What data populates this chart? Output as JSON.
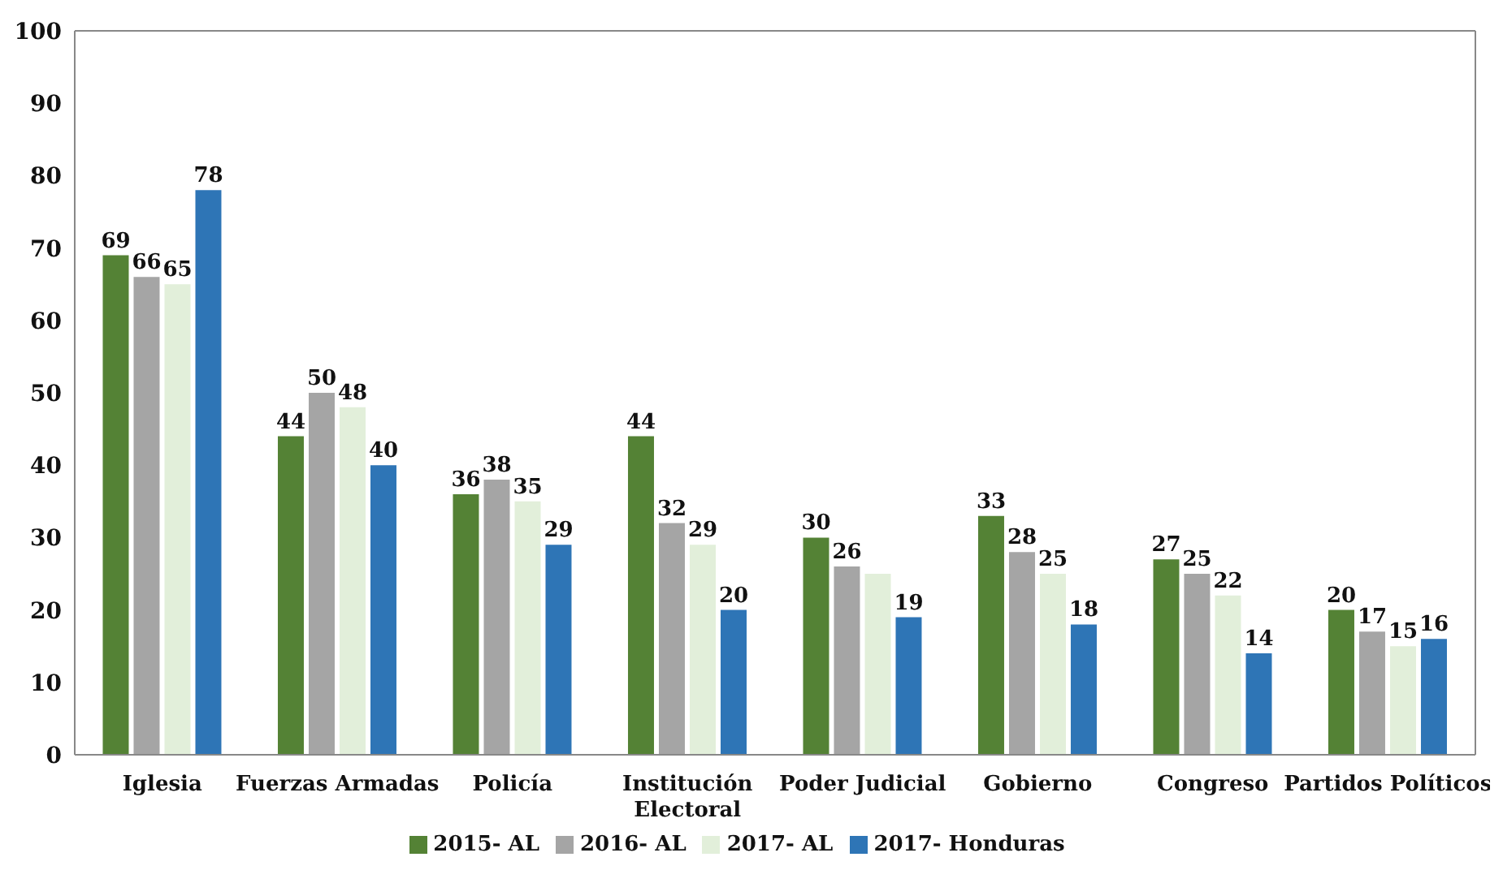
{
  "chart_data": {
    "type": "bar",
    "categories": [
      "Iglesia",
      "Fuerzas Armadas",
      "Policía",
      "Institución Electoral",
      "Poder Judicial",
      "Gobierno",
      "Congreso",
      "Partidos Políticos"
    ],
    "series": [
      {
        "name": "2015- AL",
        "color": "#548235",
        "values": [
          69,
          44,
          36,
          44,
          30,
          33,
          27,
          20
        ],
        "value_labels": [
          "69",
          "44",
          "36",
          "44",
          "30",
          "33",
          "27",
          "20"
        ]
      },
      {
        "name": "2016- AL",
        "color": "#a5a5a5",
        "values": [
          66,
          50,
          38,
          32,
          26,
          28,
          25,
          17
        ],
        "value_labels": [
          "66",
          "50",
          "38",
          "32",
          "26",
          "28",
          "25",
          "17"
        ]
      },
      {
        "name": "2017- AL",
        "color": "#e2efda",
        "values": [
          65,
          48,
          35,
          29,
          25,
          25,
          22,
          15
        ],
        "value_labels": [
          "65",
          "48",
          "35",
          "29",
          null,
          "25",
          "22",
          "15"
        ]
      },
      {
        "name": "2017- Honduras",
        "color": "#2e75b6",
        "values": [
          78,
          40,
          29,
          20,
          19,
          18,
          14,
          16
        ],
        "value_labels": [
          "78",
          "40",
          "29",
          "20",
          "19",
          "18",
          "14",
          "16"
        ]
      }
    ],
    "ylim": [
      0,
      100
    ],
    "yticks": [
      0,
      10,
      20,
      30,
      40,
      50,
      60,
      70,
      80,
      90,
      100
    ],
    "grid": false,
    "legend": "bottom"
  }
}
